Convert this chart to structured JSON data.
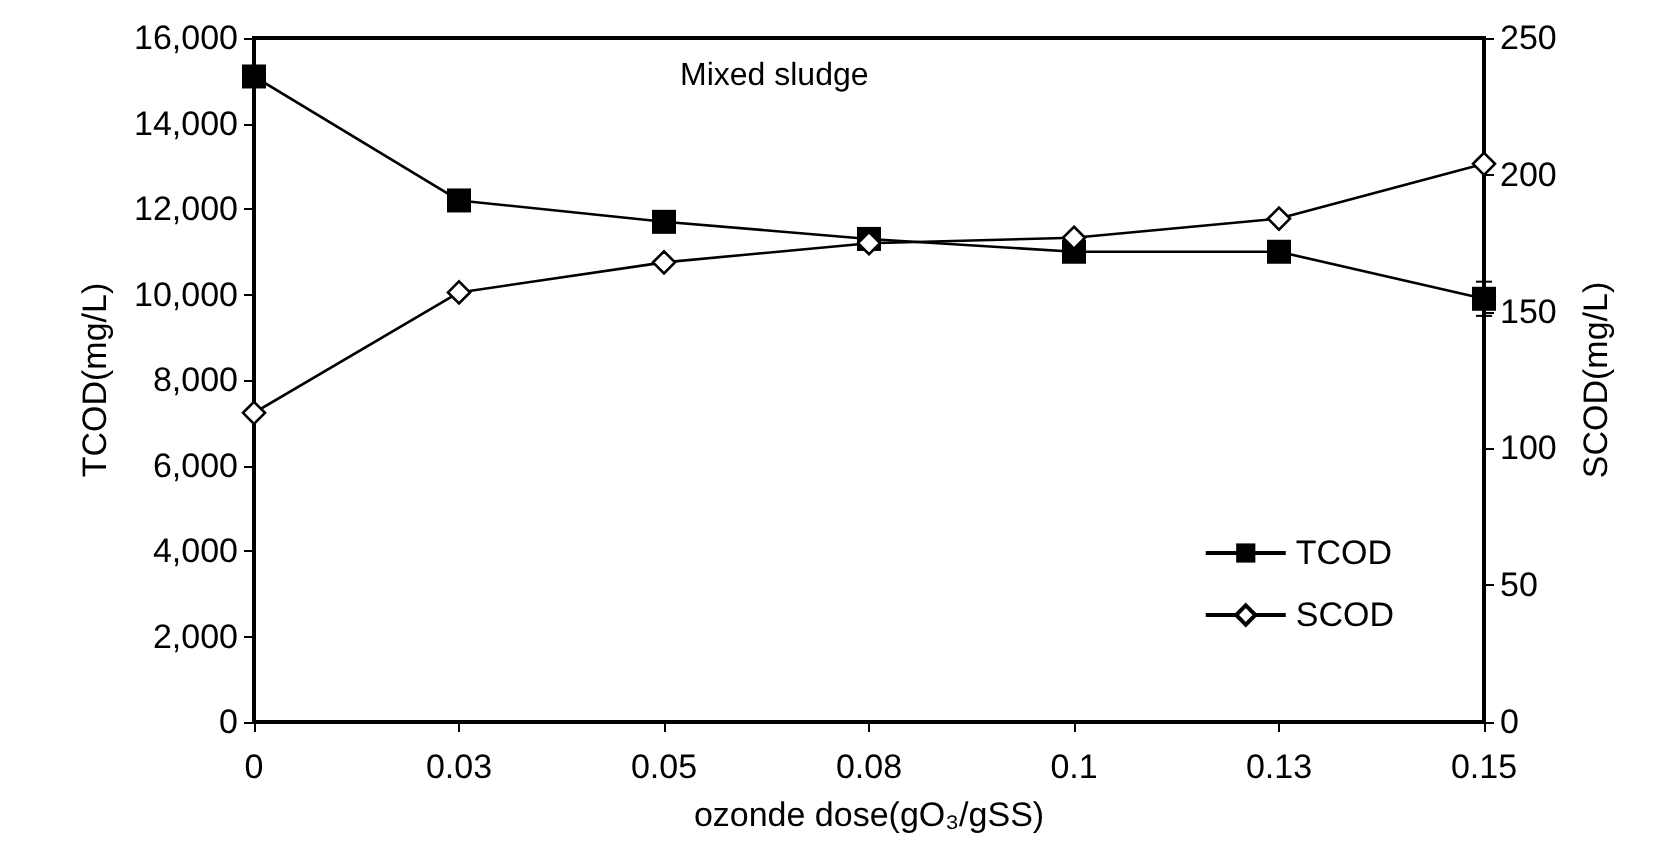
{
  "chart_data": {
    "type": "line",
    "xlabel": "ozonde dose(gO₃/gSS)",
    "ylabel": "TCOD(mg/L)",
    "y2label": "SCOD(mg/L)",
    "annotations": [
      "Mixed sludge"
    ],
    "categories": [
      "0",
      "0.03",
      "0.05",
      "0.08",
      "0.1",
      "0.13",
      "0.15"
    ],
    "series": [
      {
        "name": "TCOD",
        "color": "#000000",
        "marker": "square",
        "values": [
          15100,
          12200,
          11700,
          11300,
          11000,
          11000,
          9900
        ],
        "errors": [
          null,
          null,
          null,
          null,
          null,
          null,
          400
        ]
      },
      {
        "name": "SCOD",
        "color": "#000000",
        "marker": "diamond",
        "axis": "y2",
        "values": [
          113,
          157,
          168,
          175,
          177,
          184,
          204
        ]
      }
    ],
    "ylim": [
      0,
      16000
    ],
    "yticks": [
      0,
      {
        "value": 2000,
        "label": "2,000"
      },
      {
        "value": 4000,
        "label": "4,000"
      },
      {
        "value": 6000,
        "label": "6,000"
      },
      {
        "value": 8000,
        "label": "8,000"
      },
      {
        "value": 10000,
        "label": "10,000"
      },
      {
        "value": 12000,
        "label": "12,000"
      },
      {
        "value": 14000,
        "label": "14,000"
      },
      {
        "value": 16000,
        "label": "16,000"
      }
    ],
    "y2lim": [
      0,
      250
    ],
    "y2ticks": [
      0,
      50,
      100,
      150,
      200,
      250
    ],
    "grid": false,
    "legend": "bottom right"
  }
}
